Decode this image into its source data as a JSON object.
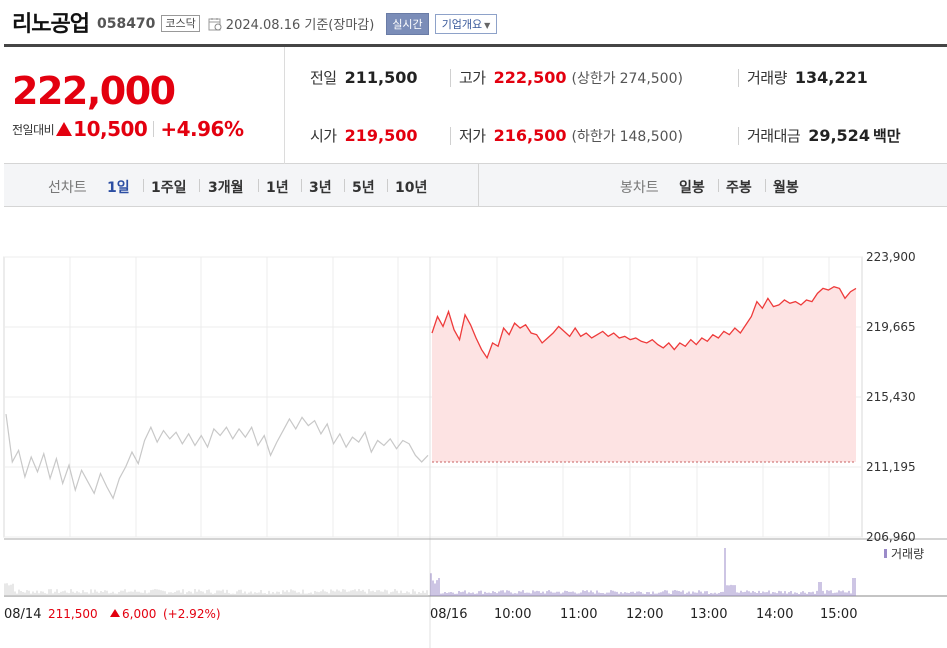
{
  "header": {
    "company": "리노공업",
    "code": "058470",
    "market": "코스닥",
    "basis": "2024.08.16 기준(장마감)",
    "live_label": "실시간",
    "info_label": "기업개요"
  },
  "quote": {
    "price": "222,000",
    "change_label": "전일대비",
    "change": "10,500",
    "change_pct": "+4.96%",
    "prev_label": "전일",
    "prev": "211,500",
    "high_label": "고가",
    "high": "222,500",
    "upper_label": "(상한가",
    "upper": "274,500)",
    "volume_label": "거래량",
    "volume": "134,221",
    "open_label": "시가",
    "open": "219,500",
    "low_label": "저가",
    "low": "216,500",
    "lower_label": "(하한가",
    "lower": "148,500)",
    "amount_label": "거래대금",
    "amount": "29,524",
    "amount_unit": "백만",
    "up_color": "#e3000f"
  },
  "periods": {
    "line_label": "선차트",
    "line_items": [
      "1일",
      "1주일",
      "3개월",
      "1년",
      "3년",
      "5년",
      "10년"
    ],
    "selected": "1일",
    "candle_label": "봉차트",
    "candle_items": [
      "일봉",
      "주봉",
      "월봉"
    ]
  },
  "chart_data": {
    "type": "line",
    "y_ticks": [
      "223,900",
      "219,665",
      "215,430",
      "211,195",
      "206,960"
    ],
    "ylim": [
      206960,
      223900
    ],
    "x_ticks": [
      "08/14",
      "08/16",
      "10:00",
      "11:00",
      "12:00",
      "13:00",
      "14:00",
      "15:00"
    ],
    "reference_close": 211500,
    "prev_day_series": {
      "color": "#c8c8c8",
      "values": [
        214400,
        211500,
        212200,
        210600,
        211800,
        210900,
        212000,
        210500,
        211700,
        210200,
        211300,
        209800,
        211000,
        210300,
        209600,
        210800,
        210000,
        209300,
        210500,
        211200,
        212100,
        211400,
        212800,
        213600,
        212700,
        213400,
        212900,
        213300,
        212600,
        213200,
        212500,
        213100,
        212400,
        213500,
        213100,
        213600,
        212900,
        213500,
        213000,
        213600,
        212500,
        213100,
        211900,
        212700,
        213400,
        214100,
        213500,
        214200,
        213700,
        214000,
        213200,
        213800,
        212600,
        213200,
        212400,
        213000,
        212700,
        213300,
        212100,
        212800,
        212500,
        212900,
        212300,
        212800,
        212600,
        211900,
        211500,
        211900
      ]
    },
    "today_series": {
      "color": "#ee3b3b",
      "fill": "#fde3e3",
      "values": [
        219300,
        220300,
        219700,
        220600,
        219500,
        218900,
        220400,
        219800,
        219000,
        218300,
        217800,
        218700,
        218500,
        219600,
        219200,
        219900,
        219600,
        219800,
        219300,
        219200,
        218700,
        219000,
        219300,
        219700,
        219400,
        219100,
        219600,
        219100,
        219300,
        219000,
        219200,
        219400,
        219100,
        219300,
        219000,
        219100,
        218900,
        219000,
        218800,
        218700,
        218900,
        218600,
        218400,
        218700,
        218300,
        218700,
        218500,
        218900,
        218600,
        219000,
        218800,
        219200,
        219000,
        219400,
        219200,
        219600,
        219300,
        219800,
        220300,
        221200,
        220800,
        221400,
        220900,
        221000,
        221300,
        221100,
        221200,
        221000,
        221300,
        221200,
        221700,
        222000,
        221900,
        222100,
        222000,
        221400,
        221800,
        222000
      ]
    },
    "volume_legend": "거래량",
    "volume_color": "#9b8bc9",
    "prev_close_label": "08/14",
    "prev_close_price": "211,500",
    "prev_close_change": "6,000",
    "prev_close_pct": "(+2.92%)"
  }
}
